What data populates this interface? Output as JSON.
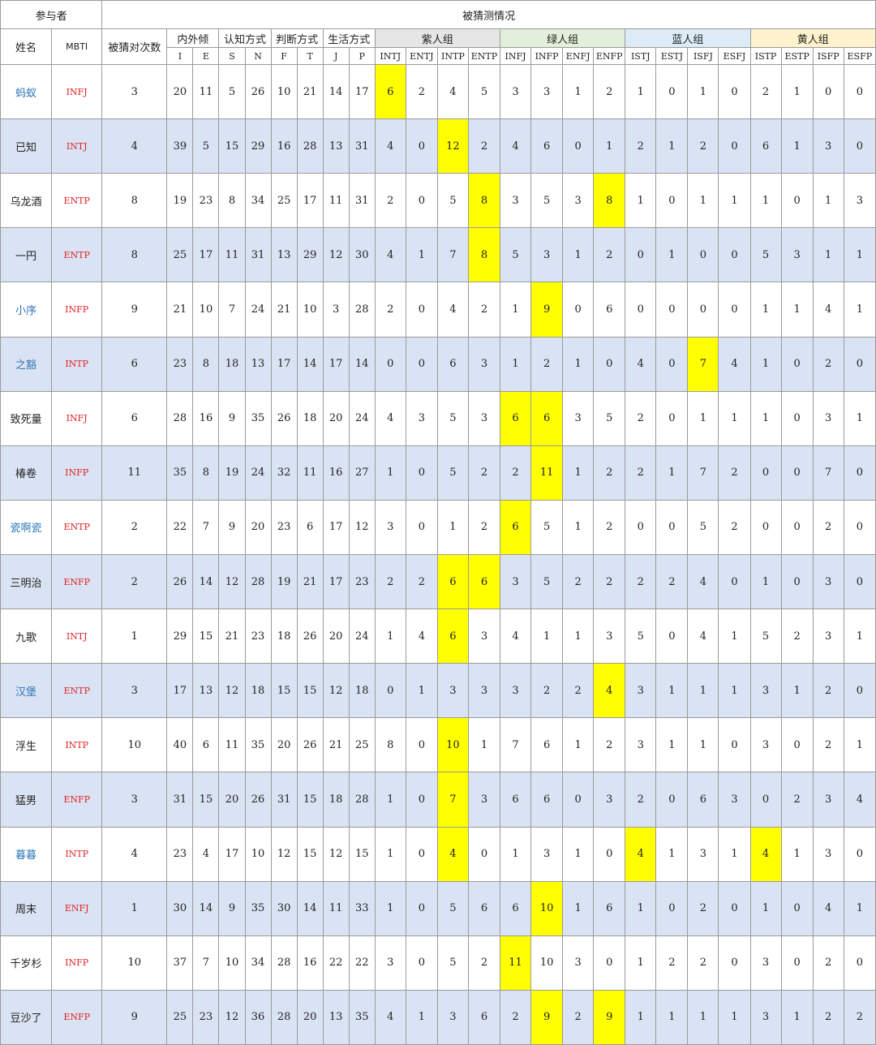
{
  "colors": {
    "header_bg": "#ffffff",
    "alt_row_bg": "#dae3f3",
    "highlight": "#ffff00",
    "group_purple_bg": "#e7e6e6",
    "group_green_bg": "#e2efda",
    "group_blue_bg": "#ddebf7",
    "group_yellow_bg": "#fff2cc",
    "mbti_text": "#e02020",
    "name_blue": "#2e75b6",
    "name_black": "#222222"
  },
  "header": {
    "participants": "参与者",
    "guessed": "被猜测情况",
    "name": "姓名",
    "mbti": "MBTI",
    "correct_count": "被猜对次数",
    "dims": [
      {
        "label": "内外倾",
        "letters": [
          "I",
          "E"
        ]
      },
      {
        "label": "认知方式",
        "letters": [
          "S",
          "N"
        ]
      },
      {
        "label": "判断方式",
        "letters": [
          "F",
          "T"
        ]
      },
      {
        "label": "生活方式",
        "letters": [
          "J",
          "P"
        ]
      }
    ],
    "groups": [
      {
        "label": "紫人组",
        "bg": "#e7e6e6",
        "types": [
          "INTJ",
          "ENTJ",
          "INTP",
          "ENTP"
        ]
      },
      {
        "label": "绿人组",
        "bg": "#e2efda",
        "types": [
          "INFJ",
          "INFP",
          "ENFJ",
          "ENFP"
        ]
      },
      {
        "label": "蓝人组",
        "bg": "#ddebf7",
        "types": [
          "ISTJ",
          "ESTJ",
          "ISFJ",
          "ESFJ"
        ]
      },
      {
        "label": "黄人组",
        "bg": "#fff2cc",
        "types": [
          "ISTP",
          "ESTP",
          "ISFP",
          "ESFP"
        ]
      }
    ]
  },
  "rows": [
    {
      "name": "蚂蚁",
      "name_color": "#2e75b6",
      "mbti": "INFJ",
      "count": "3",
      "dims": [
        "20",
        "11",
        "5",
        "26",
        "10",
        "21",
        "14",
        "17"
      ],
      "types": [
        "6",
        "2",
        "4",
        "5",
        "3",
        "3",
        "1",
        "2",
        "1",
        "0",
        "1",
        "0",
        "2",
        "1",
        "0",
        "0"
      ],
      "hl": [
        0
      ]
    },
    {
      "name": "已知",
      "name_color": "#222222",
      "mbti": "INTJ",
      "count": "4",
      "dims": [
        "39",
        "5",
        "15",
        "29",
        "16",
        "28",
        "13",
        "31"
      ],
      "types": [
        "4",
        "0",
        "12",
        "2",
        "4",
        "6",
        "0",
        "1",
        "2",
        "1",
        "2",
        "0",
        "6",
        "1",
        "3",
        "0"
      ],
      "hl": [
        2
      ]
    },
    {
      "name": "乌龙酒",
      "name_color": "#222222",
      "mbti": "ENTP",
      "count": "8",
      "dims": [
        "19",
        "23",
        "8",
        "34",
        "25",
        "17",
        "11",
        "31"
      ],
      "types": [
        "2",
        "0",
        "5",
        "8",
        "3",
        "5",
        "3",
        "8",
        "1",
        "0",
        "1",
        "1",
        "1",
        "0",
        "1",
        "3"
      ],
      "hl": [
        3,
        7
      ]
    },
    {
      "name": "一円",
      "name_color": "#222222",
      "mbti": "ENTP",
      "count": "8",
      "dims": [
        "25",
        "17",
        "11",
        "31",
        "13",
        "29",
        "12",
        "30"
      ],
      "types": [
        "4",
        "1",
        "7",
        "8",
        "5",
        "3",
        "1",
        "2",
        "0",
        "1",
        "0",
        "0",
        "5",
        "3",
        "1",
        "1"
      ],
      "hl": [
        3
      ]
    },
    {
      "name": "小序",
      "name_color": "#2e75b6",
      "mbti": "INFP",
      "count": "9",
      "dims": [
        "21",
        "10",
        "7",
        "24",
        "21",
        "10",
        "3",
        "28"
      ],
      "types": [
        "2",
        "0",
        "4",
        "2",
        "1",
        "9",
        "0",
        "6",
        "0",
        "0",
        "0",
        "0",
        "1",
        "1",
        "4",
        "1"
      ],
      "hl": [
        5
      ]
    },
    {
      "name": "之豁",
      "name_color": "#2e75b6",
      "mbti": "INTP",
      "count": "6",
      "dims": [
        "23",
        "8",
        "18",
        "13",
        "17",
        "14",
        "17",
        "14"
      ],
      "types": [
        "0",
        "0",
        "6",
        "3",
        "1",
        "2",
        "1",
        "0",
        "4",
        "0",
        "7",
        "4",
        "1",
        "0",
        "2",
        "0"
      ],
      "hl": [
        10
      ]
    },
    {
      "name": "致死量",
      "name_color": "#222222",
      "mbti": "INFJ",
      "count": "6",
      "dims": [
        "28",
        "16",
        "9",
        "35",
        "26",
        "18",
        "20",
        "24"
      ],
      "types": [
        "4",
        "3",
        "5",
        "3",
        "6",
        "6",
        "3",
        "5",
        "2",
        "0",
        "1",
        "1",
        "1",
        "0",
        "3",
        "1"
      ],
      "hl": [
        4,
        5
      ]
    },
    {
      "name": "椿卷",
      "name_color": "#222222",
      "mbti": "INFP",
      "count": "11",
      "dims": [
        "35",
        "8",
        "19",
        "24",
        "32",
        "11",
        "16",
        "27"
      ],
      "types": [
        "1",
        "0",
        "5",
        "2",
        "2",
        "11",
        "1",
        "2",
        "2",
        "1",
        "7",
        "2",
        "0",
        "0",
        "7",
        "0"
      ],
      "hl": [
        5
      ]
    },
    {
      "name": "瓷啊瓷",
      "name_color": "#2e75b6",
      "mbti": "ENTP",
      "count": "2",
      "dims": [
        "22",
        "7",
        "9",
        "20",
        "23",
        "6",
        "17",
        "12"
      ],
      "types": [
        "3",
        "0",
        "1",
        "2",
        "6",
        "5",
        "1",
        "2",
        "0",
        "0",
        "5",
        "2",
        "0",
        "0",
        "2",
        "0"
      ],
      "hl": [
        4
      ]
    },
    {
      "name": "三明治",
      "name_color": "#222222",
      "mbti": "ENFP",
      "count": "2",
      "dims": [
        "26",
        "14",
        "12",
        "28",
        "19",
        "21",
        "17",
        "23"
      ],
      "types": [
        "2",
        "2",
        "6",
        "6",
        "3",
        "5",
        "2",
        "2",
        "2",
        "2",
        "4",
        "0",
        "1",
        "0",
        "3",
        "0"
      ],
      "hl": [
        2,
        3
      ]
    },
    {
      "name": "九歌",
      "name_color": "#222222",
      "mbti": "INTJ",
      "count": "1",
      "dims": [
        "29",
        "15",
        "21",
        "23",
        "18",
        "26",
        "20",
        "24"
      ],
      "types": [
        "1",
        "4",
        "6",
        "3",
        "4",
        "1",
        "1",
        "3",
        "5",
        "0",
        "4",
        "1",
        "5",
        "2",
        "3",
        "1"
      ],
      "hl": [
        2
      ]
    },
    {
      "name": "汉堡",
      "name_color": "#2e75b6",
      "mbti": "ENTP",
      "count": "3",
      "dims": [
        "17",
        "13",
        "12",
        "18",
        "15",
        "15",
        "12",
        "18"
      ],
      "types": [
        "0",
        "1",
        "3",
        "3",
        "3",
        "2",
        "2",
        "4",
        "3",
        "1",
        "1",
        "1",
        "3",
        "1",
        "2",
        "0"
      ],
      "hl": [
        7
      ]
    },
    {
      "name": "浮生",
      "name_color": "#222222",
      "mbti": "INTP",
      "count": "10",
      "dims": [
        "40",
        "6",
        "11",
        "35",
        "20",
        "26",
        "21",
        "25"
      ],
      "types": [
        "8",
        "0",
        "10",
        "1",
        "7",
        "6",
        "1",
        "2",
        "3",
        "1",
        "1",
        "0",
        "3",
        "0",
        "2",
        "1"
      ],
      "hl": [
        2
      ]
    },
    {
      "name": "猛男",
      "name_color": "#222222",
      "mbti": "ENFP",
      "count": "3",
      "dims": [
        "31",
        "15",
        "20",
        "26",
        "31",
        "15",
        "18",
        "28"
      ],
      "types": [
        "1",
        "0",
        "7",
        "3",
        "6",
        "6",
        "0",
        "3",
        "2",
        "0",
        "6",
        "3",
        "0",
        "2",
        "3",
        "4"
      ],
      "hl": [
        2
      ]
    },
    {
      "name": "暮暮",
      "name_color": "#2e75b6",
      "mbti": "INTP",
      "count": "4",
      "dims": [
        "23",
        "4",
        "17",
        "10",
        "12",
        "15",
        "12",
        "15"
      ],
      "types": [
        "1",
        "0",
        "4",
        "0",
        "1",
        "3",
        "1",
        "0",
        "4",
        "1",
        "3",
        "1",
        "4",
        "1",
        "3",
        "0"
      ],
      "hl": [
        2,
        8,
        12
      ]
    },
    {
      "name": "周末",
      "name_color": "#222222",
      "mbti": "ENFJ",
      "count": "1",
      "dims": [
        "30",
        "14",
        "9",
        "35",
        "30",
        "14",
        "11",
        "33"
      ],
      "types": [
        "1",
        "0",
        "5",
        "6",
        "6",
        "10",
        "1",
        "6",
        "1",
        "0",
        "2",
        "0",
        "1",
        "0",
        "4",
        "1"
      ],
      "hl": [
        5
      ]
    },
    {
      "name": "千岁杉",
      "name_color": "#222222",
      "mbti": "INFP",
      "count": "10",
      "dims": [
        "37",
        "7",
        "10",
        "34",
        "28",
        "16",
        "22",
        "22"
      ],
      "types": [
        "3",
        "0",
        "5",
        "2",
        "11",
        "10",
        "3",
        "0",
        "1",
        "2",
        "2",
        "0",
        "3",
        "0",
        "2",
        "0"
      ],
      "hl": [
        4
      ]
    },
    {
      "name": "豆沙了",
      "name_color": "#222222",
      "mbti": "ENFP",
      "count": "9",
      "dims": [
        "25",
        "23",
        "12",
        "36",
        "28",
        "20",
        "13",
        "35"
      ],
      "types": [
        "4",
        "1",
        "3",
        "6",
        "2",
        "9",
        "2",
        "9",
        "1",
        "1",
        "1",
        "1",
        "3",
        "1",
        "2",
        "2"
      ],
      "hl": [
        5,
        7
      ]
    }
  ]
}
